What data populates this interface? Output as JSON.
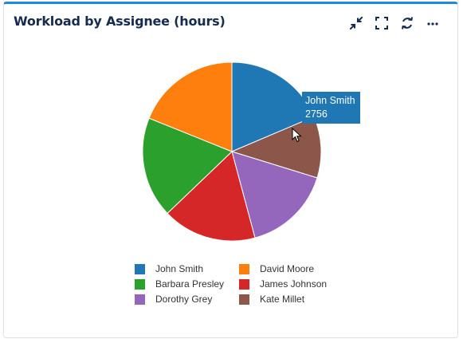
{
  "widget": {
    "title": "Workload by Assignee (hours)",
    "toolbar": [
      {
        "name": "collapse-icon",
        "label": "Collapse"
      },
      {
        "name": "fullscreen-icon",
        "label": "Full screen"
      },
      {
        "name": "refresh-icon",
        "label": "Refresh"
      },
      {
        "name": "more-options-icon",
        "label": "More options"
      }
    ]
  },
  "tooltip": {
    "label": "John Smith",
    "value": "2756"
  },
  "chart_data": {
    "type": "pie",
    "title": "Workload by Assignee (hours)",
    "slices": [
      {
        "label": "John Smith",
        "value": 2756,
        "color": "#1f77b4"
      },
      {
        "label": "Kate Millet",
        "value": 1650,
        "color": "#8c564b"
      },
      {
        "label": "Dorothy Grey",
        "value": 2380,
        "color": "#9467bd"
      },
      {
        "label": "James Johnson",
        "value": 2520,
        "color": "#d62728"
      },
      {
        "label": "Barbara Presley",
        "value": 2700,
        "color": "#2ca02c"
      },
      {
        "label": "David Moore",
        "value": 2800,
        "color": "#ff7f0e"
      }
    ],
    "legend": [
      {
        "label": "John Smith",
        "color": "#1f77b4"
      },
      {
        "label": "David Moore",
        "color": "#ff7f0e"
      },
      {
        "label": "Barbara Presley",
        "color": "#2ca02c"
      },
      {
        "label": "James Johnson",
        "color": "#d62728"
      },
      {
        "label": "Dorothy Grey",
        "color": "#9467bd"
      },
      {
        "label": "Kate Millet",
        "color": "#8c564b"
      }
    ],
    "legend_position": "bottom"
  }
}
